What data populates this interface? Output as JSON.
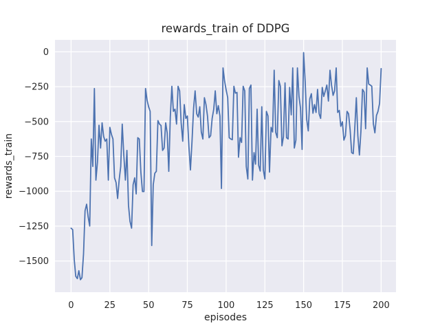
{
  "colors": {
    "figure_bg": "#ffffff",
    "axes_bg": "#eaeaf2",
    "grid": "#ffffff",
    "line": "#4c72b0",
    "text": "#262626",
    "tick_text": "#333333"
  },
  "chart_data": {
    "type": "line",
    "title": "rewards_train of DDPG",
    "xlabel": "episodes",
    "ylabel": "rewards_train",
    "legend": null,
    "grid": true,
    "style": "seaborn-darkgrid",
    "xlim": [
      -10.4,
      209.6
    ],
    "ylim": [
      -1724,
      86
    ],
    "x_ticks": [
      0,
      25,
      50,
      75,
      100,
      125,
      150,
      175,
      200
    ],
    "x_tick_labels": [
      "0",
      "25",
      "50",
      "75",
      "100",
      "125",
      "150",
      "175",
      "200"
    ],
    "y_ticks": [
      0,
      -250,
      -500,
      -750,
      -1000,
      -1250,
      -1500
    ],
    "y_tick_labels": [
      "0",
      "−250",
      "−500",
      "−750",
      "−1000",
      "−1250",
      "−1500"
    ],
    "series": [
      {
        "name": "rewards_train",
        "x_start": 0,
        "x_step": 1,
        "values": [
          -1265,
          -1275,
          -1490,
          -1610,
          -1627,
          -1570,
          -1634,
          -1620,
          -1450,
          -1140,
          -1093,
          -1183,
          -1249,
          -625,
          -822,
          -263,
          -920,
          -790,
          -526,
          -690,
          -509,
          -608,
          -641,
          -625,
          -920,
          -542,
          -592,
          -625,
          -904,
          -937,
          -1052,
          -920,
          -822,
          -518,
          -740,
          -920,
          -707,
          -1101,
          -1216,
          -1265,
          -953,
          -904,
          -1019,
          -616,
          -625,
          -863,
          -1002,
          -1002,
          -263,
          -345,
          -394,
          -427,
          -1389,
          -953,
          -871,
          -857,
          -493,
          -518,
          -528,
          -707,
          -690,
          -509,
          -583,
          -857,
          -468,
          -247,
          -427,
          -411,
          -518,
          -247,
          -280,
          -509,
          -641,
          -378,
          -477,
          -460,
          -682,
          -847,
          -641,
          -403,
          -280,
          -444,
          -468,
          -394,
          -575,
          -625,
          -329,
          -378,
          -460,
          -616,
          -601,
          -477,
          -411,
          -280,
          -444,
          -386,
          -460,
          -980,
          -115,
          -206,
          -272,
          -329,
          -616,
          -625,
          -630,
          -247,
          -296,
          -291,
          -756,
          -616,
          -650,
          -247,
          -280,
          -822,
          -912,
          -263,
          -238,
          -920,
          -723,
          -805,
          -411,
          -814,
          -855,
          -394,
          -847,
          -912,
          -427,
          -460,
          -863,
          -542,
          -575,
          -132,
          -577,
          -616,
          -206,
          -247,
          -674,
          -608,
          -222,
          -616,
          -625,
          -255,
          -452,
          -115,
          -690,
          -633,
          -115,
          -320,
          -403,
          -700,
          -5,
          -214,
          -485,
          -567,
          -337,
          -300,
          -440,
          -378,
          -435,
          -269,
          -444,
          -477,
          -255,
          -320,
          -280,
          -238,
          -353,
          -132,
          -238,
          -312,
          -280,
          -115,
          -435,
          -420,
          -534,
          -502,
          -633,
          -601,
          -427,
          -444,
          -560,
          -723,
          -730,
          -551,
          -329,
          -601,
          -740,
          -567,
          -269,
          -288,
          -551,
          -115,
          -230,
          -238,
          -247,
          -518,
          -581,
          -456,
          -427,
          -370,
          -120
        ]
      }
    ]
  }
}
